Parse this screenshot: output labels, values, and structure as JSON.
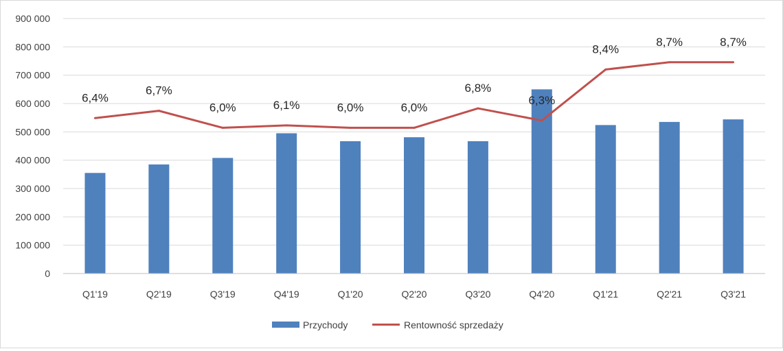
{
  "chart_data": {
    "type": "bar",
    "categories": [
      "Q1'19",
      "Q2'19",
      "Q3'19",
      "Q4'19",
      "Q1'20",
      "Q2'20",
      "Q3'20",
      "Q4'20",
      "Q1'21",
      "Q2'21",
      "Q3'21"
    ],
    "ylim": [
      0,
      900000
    ],
    "yticks": [
      0,
      100000,
      200000,
      300000,
      400000,
      500000,
      600000,
      700000,
      800000,
      900000
    ],
    "ytick_labels": [
      "0",
      "100 000",
      "200 000",
      "300 000",
      "400 000",
      "500 000",
      "600 000",
      "700 000",
      "800 000",
      "900 000"
    ],
    "grid": true,
    "legend_position": "bottom",
    "series": [
      {
        "name": "Przychody",
        "type": "bar",
        "color": "#4f81bd",
        "values": [
          355000,
          385000,
          408000,
          495000,
          467000,
          481000,
          467000,
          650000,
          524000,
          535000,
          544000
        ]
      },
      {
        "name": "Rentowność sprzedaży",
        "type": "line",
        "color": "#c0504d",
        "values": [
          6.4,
          6.7,
          6.0,
          6.1,
          6.0,
          6.0,
          6.8,
          6.3,
          8.4,
          8.7,
          8.7
        ],
        "labels": [
          "6,4%",
          "6,7%",
          "6,0%",
          "6,1%",
          "6,0%",
          "6,0%",
          "6,8%",
          "6,3%",
          "8,4%",
          "8,7%",
          "8,7%"
        ],
        "secondary_axis": {
          "hidden": true,
          "ylim": [
            0,
            10.5
          ]
        }
      }
    ]
  }
}
